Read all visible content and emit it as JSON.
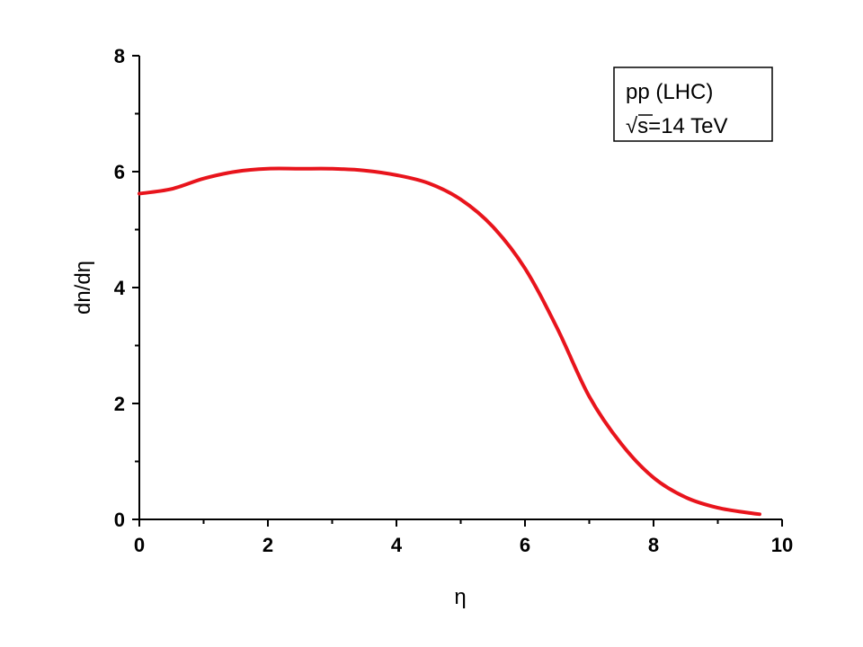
{
  "chart_data": {
    "type": "line",
    "title": "",
    "xlabel": "η",
    "ylabel": "dn/dη",
    "xlim": [
      0,
      10
    ],
    "ylim": [
      0,
      8
    ],
    "x_ticks": [
      "0",
      "2",
      "4",
      "6",
      "8",
      "10"
    ],
    "y_ticks": [
      "0",
      "2",
      "4",
      "6",
      "8"
    ],
    "grid": false,
    "annotation": {
      "line1": "pp (LHC)",
      "line2_radical": "√",
      "line2_rest": "s=14 TeV",
      "placement": "top-right"
    },
    "series": [
      {
        "color": "#e8141c",
        "x": [
          0,
          0.5,
          1.0,
          1.5,
          2.0,
          2.5,
          3.0,
          3.5,
          4.0,
          4.5,
          5.0,
          5.5,
          6.0,
          6.5,
          7.0,
          7.5,
          8.0,
          8.5,
          9.0,
          9.5,
          9.65
        ],
        "y": [
          5.62,
          5.7,
          5.88,
          6.0,
          6.05,
          6.05,
          6.05,
          6.02,
          5.94,
          5.8,
          5.52,
          5.05,
          4.33,
          3.3,
          2.12,
          1.3,
          0.72,
          0.38,
          0.2,
          0.11,
          0.09
        ]
      }
    ]
  }
}
